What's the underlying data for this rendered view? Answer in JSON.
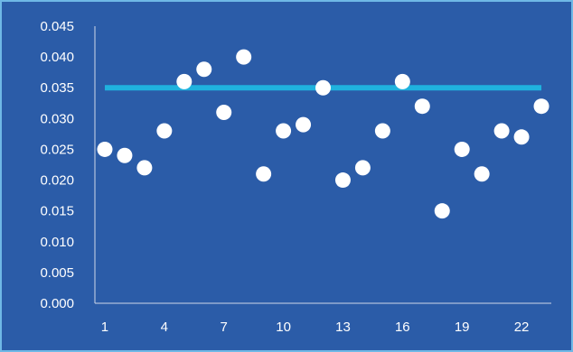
{
  "chart_data": {
    "type": "scatter",
    "title": "",
    "xlabel": "",
    "ylabel": "",
    "ylim": [
      0,
      0.045
    ],
    "xlim": [
      0.5,
      23.5
    ],
    "y_ticks": [
      "0.000",
      "0.005",
      "0.010",
      "0.015",
      "0.020",
      "0.025",
      "0.030",
      "0.035",
      "0.040",
      "0.045"
    ],
    "x_ticks": [
      1,
      4,
      7,
      10,
      13,
      16,
      19,
      22
    ],
    "grid": false,
    "legend": "none",
    "colors": {
      "background": "#2b5ca8",
      "points": "#ffffff",
      "reference_line": "#1fb2de",
      "axis": "#cfd8e8",
      "border": "#6fb8e6"
    },
    "series": [
      {
        "x": [
          1,
          2,
          3,
          4,
          5,
          6,
          7,
          8,
          9,
          10,
          11,
          12,
          13,
          14,
          15,
          16,
          17,
          18,
          19,
          20,
          21,
          22,
          23
        ],
        "y": [
          0.025,
          0.024,
          0.022,
          0.028,
          0.036,
          0.038,
          0.031,
          0.04,
          0.021,
          0.028,
          0.029,
          0.035,
          0.02,
          0.022,
          0.028,
          0.036,
          0.032,
          0.015,
          0.025,
          0.021,
          0.028,
          0.027,
          0.032
        ]
      }
    ],
    "reference_line": {
      "y": 0.035,
      "x_from": 1,
      "x_to": 23
    }
  }
}
